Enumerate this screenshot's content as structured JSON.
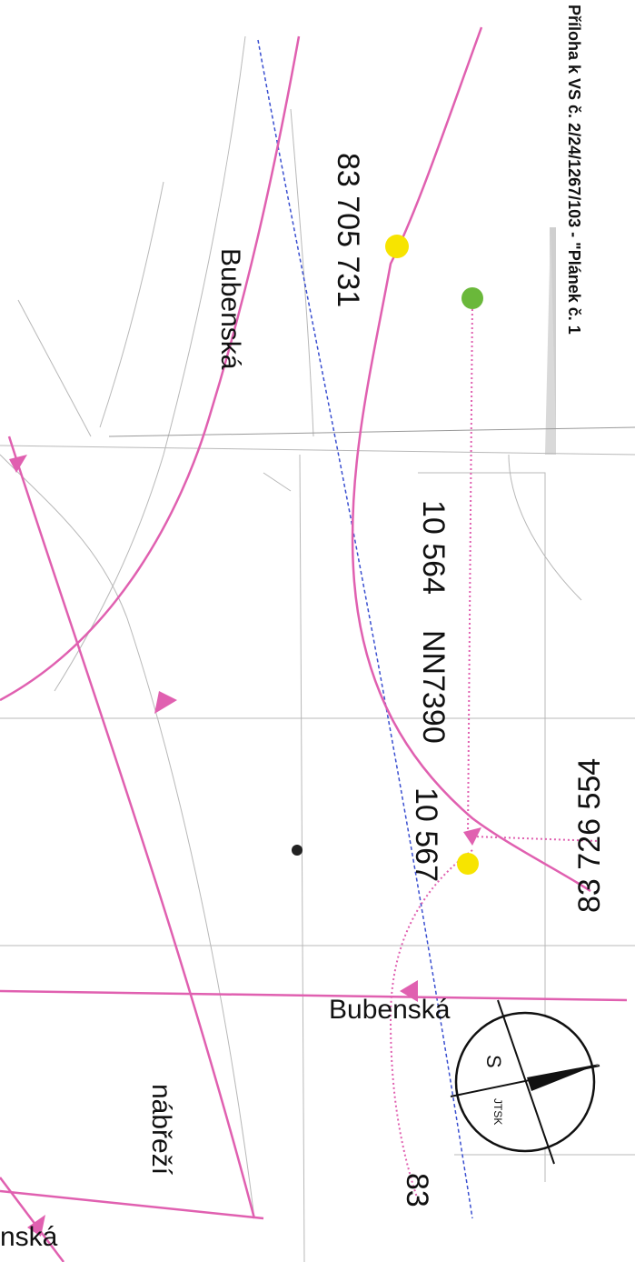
{
  "header": {
    "annotation": "Příloha k VS č. 2/24/1267/103 - \"Plánek č. 1"
  },
  "map": {
    "labels": {
      "node_83_705_731": "83 705 731",
      "node_10_564": "10 564",
      "node_nn7390": "NN7390",
      "node_10_567": "10 567",
      "node_83_726_554": "83 726 554",
      "node_83_partial": "83",
      "street_bubenska_main": "Bubenská",
      "street_bubenska_cross": "Bubenská",
      "street_nabrezi": "nábřeží",
      "street_bubenska_bottom": "nská"
    },
    "compass": {
      "north_label": "S",
      "system_label": "JTSK"
    },
    "colors": {
      "route_line": "#e060b0",
      "dashed_line": "#3a4fd0",
      "yellow_point": "#f7e400",
      "green_point": "#6ab83a",
      "dark_point": "#222222",
      "base_lines": "#b8b8b8"
    }
  }
}
